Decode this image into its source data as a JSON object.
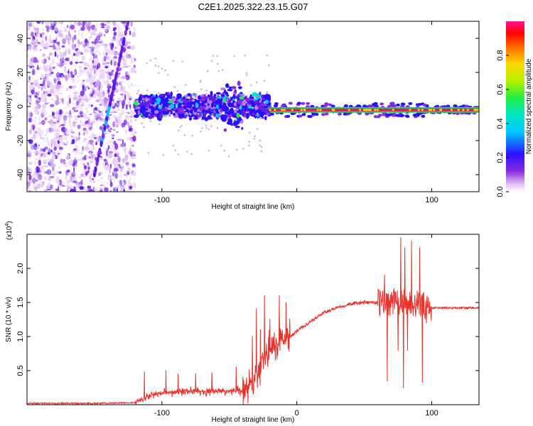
{
  "title": "C2E1.2025.322.23.15.G07",
  "colors": {
    "snr_line": "#e8312b",
    "signal_core": "#e0204a",
    "signal_band": "#1fd36a",
    "axes": "#000000",
    "background": "#ffffff"
  },
  "chart_data": [
    {
      "type": "heatmap",
      "name": "spectrogram",
      "xlabel": "Height of straight line (km)",
      "ylabel": "Frequency (Hz)",
      "xlim": [
        -200,
        135
      ],
      "ylim": [
        -50,
        50
      ],
      "xticks": [
        -100,
        0,
        100
      ],
      "xtick_labels": [
        "-100",
        "",
        "100"
      ],
      "yticks": [
        -40,
        -20,
        0,
        20,
        40
      ],
      "ytick_labels": [
        "-40",
        "-20",
        "0",
        "20",
        "40"
      ],
      "colorbar": {
        "label": "Normalized spectral amplitude",
        "range": [
          0,
          1
        ],
        "ticks": [
          0.0,
          0.2,
          0.4,
          0.6,
          0.8
        ],
        "tick_labels": [
          "0.0",
          "0.2",
          "0.4",
          "0.6",
          "0.8"
        ]
      },
      "features": [
        {
          "name": "noise-region",
          "x_range": [
            -200,
            -120
          ],
          "freq_range": [
            -50,
            50
          ],
          "amplitude": 0.15
        },
        {
          "name": "diagonal-streak",
          "x": [
            -150,
            -125
          ],
          "freq": [
            -40,
            50
          ],
          "amplitude": 0.3
        },
        {
          "name": "broadened-signal",
          "x_range": [
            -120,
            -20
          ],
          "freq_center": 0,
          "freq_halfwidth": 8,
          "amplitude": 0.25
        },
        {
          "name": "tone-line",
          "x_range": [
            -20,
            135
          ],
          "freq_center": -2,
          "amplitude": 0.95
        }
      ]
    },
    {
      "type": "line",
      "name": "snr",
      "xlabel": "Height of straight line (km)",
      "ylabel": "SNR (10 * v/v)",
      "scale_label_base": "(x10",
      "scale_label_exp": "4",
      "scale_label_close": ")",
      "xlim": [
        -200,
        135
      ],
      "ylim": [
        0,
        2.5
      ],
      "xticks": [
        -100,
        0,
        100
      ],
      "xtick_labels": [
        "-100",
        "0",
        "100"
      ],
      "yticks": [
        0.5,
        1.0,
        1.5,
        2.0
      ],
      "ytick_labels": [
        "0.5",
        "1.0",
        "1.5",
        "2.0"
      ],
      "envelope": {
        "x": [
          -200,
          -150,
          -120,
          -110,
          -100,
          -80,
          -60,
          -40,
          -35,
          -30,
          -25,
          -20,
          -15,
          -10,
          -5,
          0,
          10,
          20,
          30,
          40,
          50,
          60,
          70,
          80,
          90,
          95,
          100,
          110,
          120,
          135
        ],
        "y": [
          0.02,
          0.02,
          0.03,
          0.12,
          0.17,
          0.2,
          0.2,
          0.2,
          0.3,
          0.45,
          0.65,
          0.8,
          0.9,
          0.95,
          1.0,
          1.08,
          1.22,
          1.35,
          1.43,
          1.48,
          1.5,
          1.5,
          1.5,
          1.5,
          1.48,
          1.45,
          1.42,
          1.42,
          1.42,
          1.42
        ]
      },
      "spikes": [
        {
          "x": -113,
          "y": 0.48
        },
        {
          "x": -97,
          "y": 0.5
        },
        {
          "x": -88,
          "y": 0.45
        },
        {
          "x": -75,
          "y": 0.45
        },
        {
          "x": -63,
          "y": 0.47
        },
        {
          "x": -45,
          "y": 0.55
        },
        {
          "x": -40,
          "y": 0.4
        },
        {
          "x": -33,
          "y": 1.0
        },
        {
          "x": -30,
          "y": 1.4
        },
        {
          "x": -27,
          "y": 1.1
        },
        {
          "x": -24,
          "y": 1.6
        },
        {
          "x": -20,
          "y": 1.25
        },
        {
          "x": -13,
          "y": 1.6
        },
        {
          "x": -8,
          "y": 1.5
        },
        {
          "x": 65,
          "y": 1.9
        },
        {
          "x": 67,
          "y": 0.35
        },
        {
          "x": 72,
          "y": 1.7
        },
        {
          "x": 75,
          "y": 0.8
        },
        {
          "x": 77,
          "y": 2.45
        },
        {
          "x": 79,
          "y": 0.25
        },
        {
          "x": 80,
          "y": 2.3
        },
        {
          "x": 82,
          "y": 0.8
        },
        {
          "x": 85,
          "y": 2.4
        },
        {
          "x": 88,
          "y": 1.3
        },
        {
          "x": 91,
          "y": 2.3
        },
        {
          "x": 93,
          "y": 0.33
        },
        {
          "x": 96,
          "y": 1.2
        }
      ]
    }
  ]
}
